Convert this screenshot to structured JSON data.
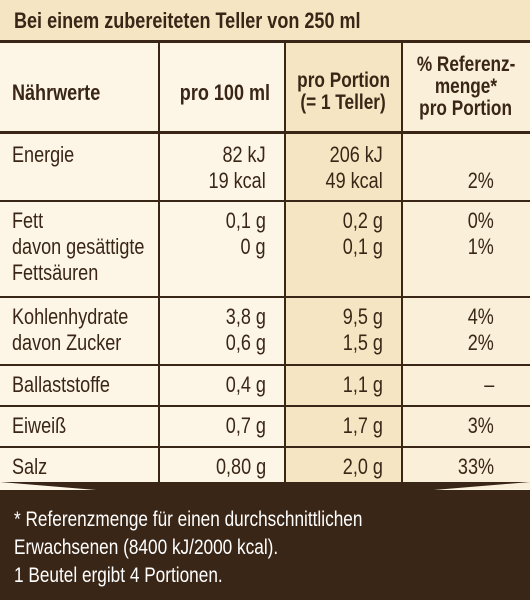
{
  "header": {
    "title": "Bei einem zubereiteten Teller von 250 ml"
  },
  "columns": {
    "name": "Nährwerte",
    "per100": "pro 100 ml",
    "portion_line1": "pro Portion",
    "portion_line2": "(= 1 Teller)",
    "ref_line1": "% Referenz-",
    "ref_line2": "menge*",
    "ref_line3": "pro Portion"
  },
  "rows": {
    "energie": {
      "name": "Energie",
      "per100_kj": "82 kJ",
      "per100_kcal": "19 kcal",
      "portion_kj": "206 kJ",
      "portion_kcal": "49 kcal",
      "ref": "2%"
    },
    "fett": {
      "name": "Fett",
      "per100": "0,1 g",
      "portion": "0,2 g",
      "ref": "0%"
    },
    "fett_ges": {
      "name_line1": "davon gesättigte",
      "name_line2": "Fettsäuren",
      "per100": "0 g",
      "portion": "0,1 g",
      "ref": "1%"
    },
    "kh": {
      "name": "Kohlenhydrate",
      "per100": "3,8 g",
      "portion": "9,5 g",
      "ref": "4%"
    },
    "zucker": {
      "name": "davon Zucker",
      "per100": "0,6 g",
      "portion": "1,5 g",
      "ref": "2%"
    },
    "ballast": {
      "name": "Ballaststoffe",
      "per100": "0,4 g",
      "portion": "1,1 g",
      "ref": "–"
    },
    "eiweiss": {
      "name": "Eiweiß",
      "per100": "0,7 g",
      "portion": "1,7 g",
      "ref": "3%"
    },
    "salz": {
      "name": "Salz",
      "per100": "0,80 g",
      "portion": "2,0 g",
      "ref": "33%"
    }
  },
  "footer": {
    "line1": "* Referenzmenge für einen durchschnittlichen",
    "line2": "Erwachsenen (8400 kJ/2000 kcal).",
    "line3": "1 Beutel ergibt 4 Portionen."
  }
}
